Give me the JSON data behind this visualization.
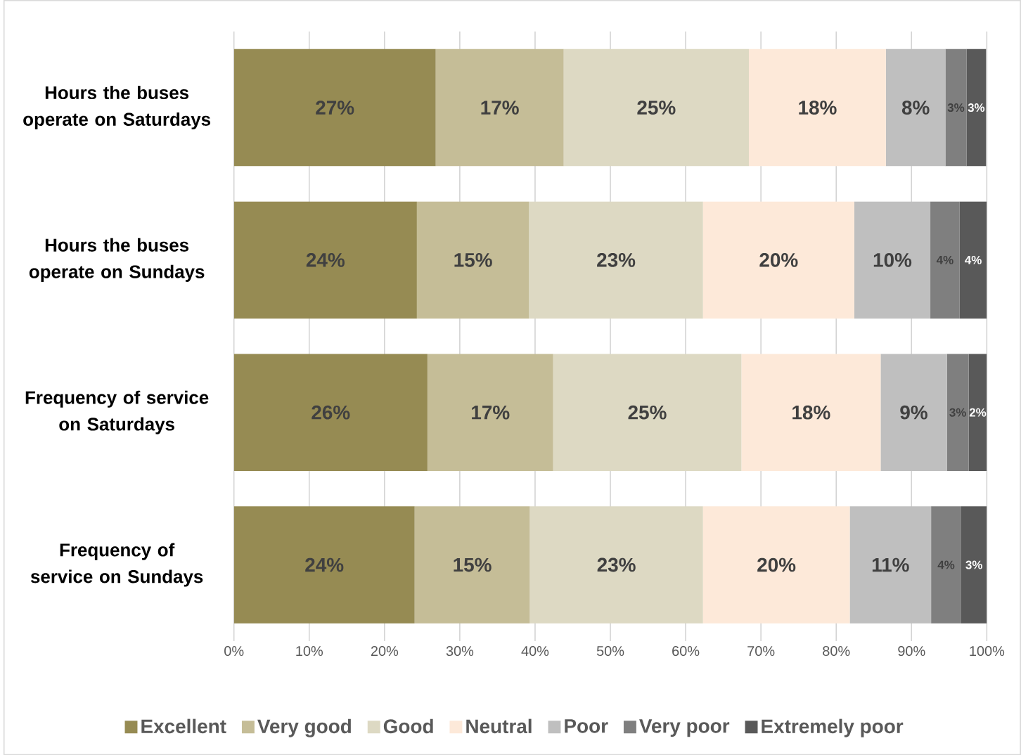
{
  "chart_data": {
    "type": "bar",
    "orientation": "horizontal",
    "stacked": true,
    "categories": [
      "Hours the buses operate on Saturdays",
      "Hours the buses operate on Sundays",
      "Frequency of service on Saturdays",
      "Frequency of service on Sundays"
    ],
    "series": [
      {
        "name": "Excellent",
        "color": "#968b53",
        "values": [
          26.8,
          24.3,
          25.7,
          24.0
        ],
        "value_labels": [
          "27%",
          "24%",
          "26%",
          "24%"
        ]
      },
      {
        "name": "Very good",
        "color": "#c5bd97",
        "values": [
          17.0,
          14.9,
          16.7,
          15.3
        ],
        "value_labels": [
          "17%",
          "15%",
          "17%",
          "15%"
        ]
      },
      {
        "name": "Good",
        "color": "#ddd9c3",
        "values": [
          24.6,
          23.1,
          25.0,
          23.0
        ],
        "value_labels": [
          "25%",
          "23%",
          "25%",
          "23%"
        ]
      },
      {
        "name": "Neutral",
        "color": "#fde9d9",
        "values": [
          18.2,
          20.1,
          18.5,
          19.5
        ],
        "value_labels": [
          "18%",
          "20%",
          "18%",
          "20%"
        ]
      },
      {
        "name": "Poor",
        "color": "#bfbfbf",
        "values": [
          7.9,
          10.1,
          8.8,
          10.8
        ],
        "value_labels": [
          "8%",
          "10%",
          "9%",
          "11%"
        ]
      },
      {
        "name": "Very poor",
        "color": "#7f7f7f",
        "values": [
          2.8,
          3.9,
          2.9,
          4.0
        ],
        "value_labels": [
          "3%",
          "4%",
          "3%",
          "4%"
        ]
      },
      {
        "name": "Extremely poor",
        "color": "#595959",
        "values": [
          2.6,
          3.6,
          2.4,
          3.4
        ],
        "value_labels": [
          "3%",
          "4%",
          "2%",
          "3%"
        ]
      }
    ],
    "xlim": [
      0,
      100
    ],
    "xticks": [
      {
        "value": 0,
        "label": "0%"
      },
      {
        "value": 10,
        "label": "10%"
      },
      {
        "value": 20,
        "label": "20%"
      },
      {
        "value": 30,
        "label": "30%"
      },
      {
        "value": 40,
        "label": "40%"
      },
      {
        "value": 50,
        "label": "50%"
      },
      {
        "value": 60,
        "label": "60%"
      },
      {
        "value": 70,
        "label": "70%"
      },
      {
        "value": 80,
        "label": "80%"
      },
      {
        "value": 90,
        "label": "90%"
      },
      {
        "value": 100,
        "label": "100%"
      }
    ],
    "grid": "x",
    "legend": "bottom"
  }
}
